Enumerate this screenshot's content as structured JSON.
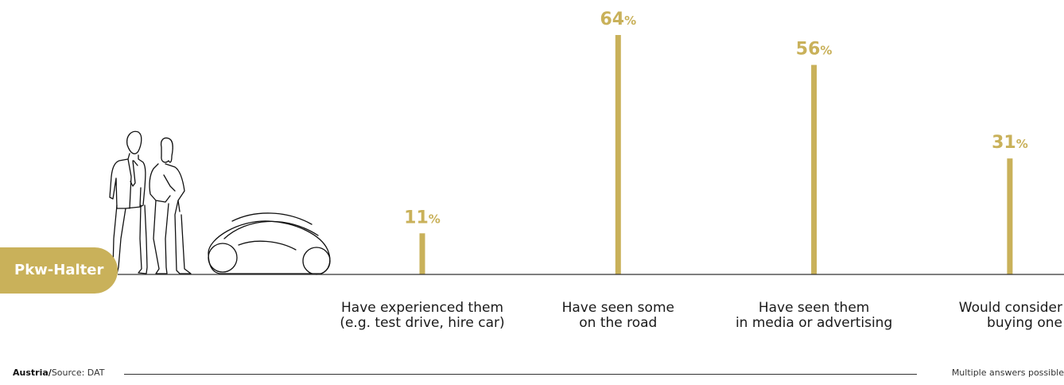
{
  "colors": {
    "accent": "#c9b15a",
    "baseline": "#333333",
    "line_art": "#111111"
  },
  "badge": {
    "label": "Pkw-Halter"
  },
  "illustration": {
    "icons": [
      "people-icon",
      "car-icon"
    ]
  },
  "footer": {
    "country": "Austria",
    "separator": "/",
    "source": "Source: DAT",
    "note": "Multiple answers possible"
  },
  "chart_data": {
    "type": "bar",
    "title": "",
    "xlabel": "",
    "ylabel": "",
    "ylim": [
      0,
      64
    ],
    "grid": false,
    "value_suffix": "%",
    "categories": [
      [
        "Have experienced them",
        "(e.g. test drive, hire car)"
      ],
      [
        "Have seen some",
        "on the road"
      ],
      [
        "Have seen them",
        "in media or advertising"
      ],
      [
        "Would consider",
        "buying one"
      ]
    ],
    "values": [
      11,
      64,
      56,
      31
    ]
  }
}
